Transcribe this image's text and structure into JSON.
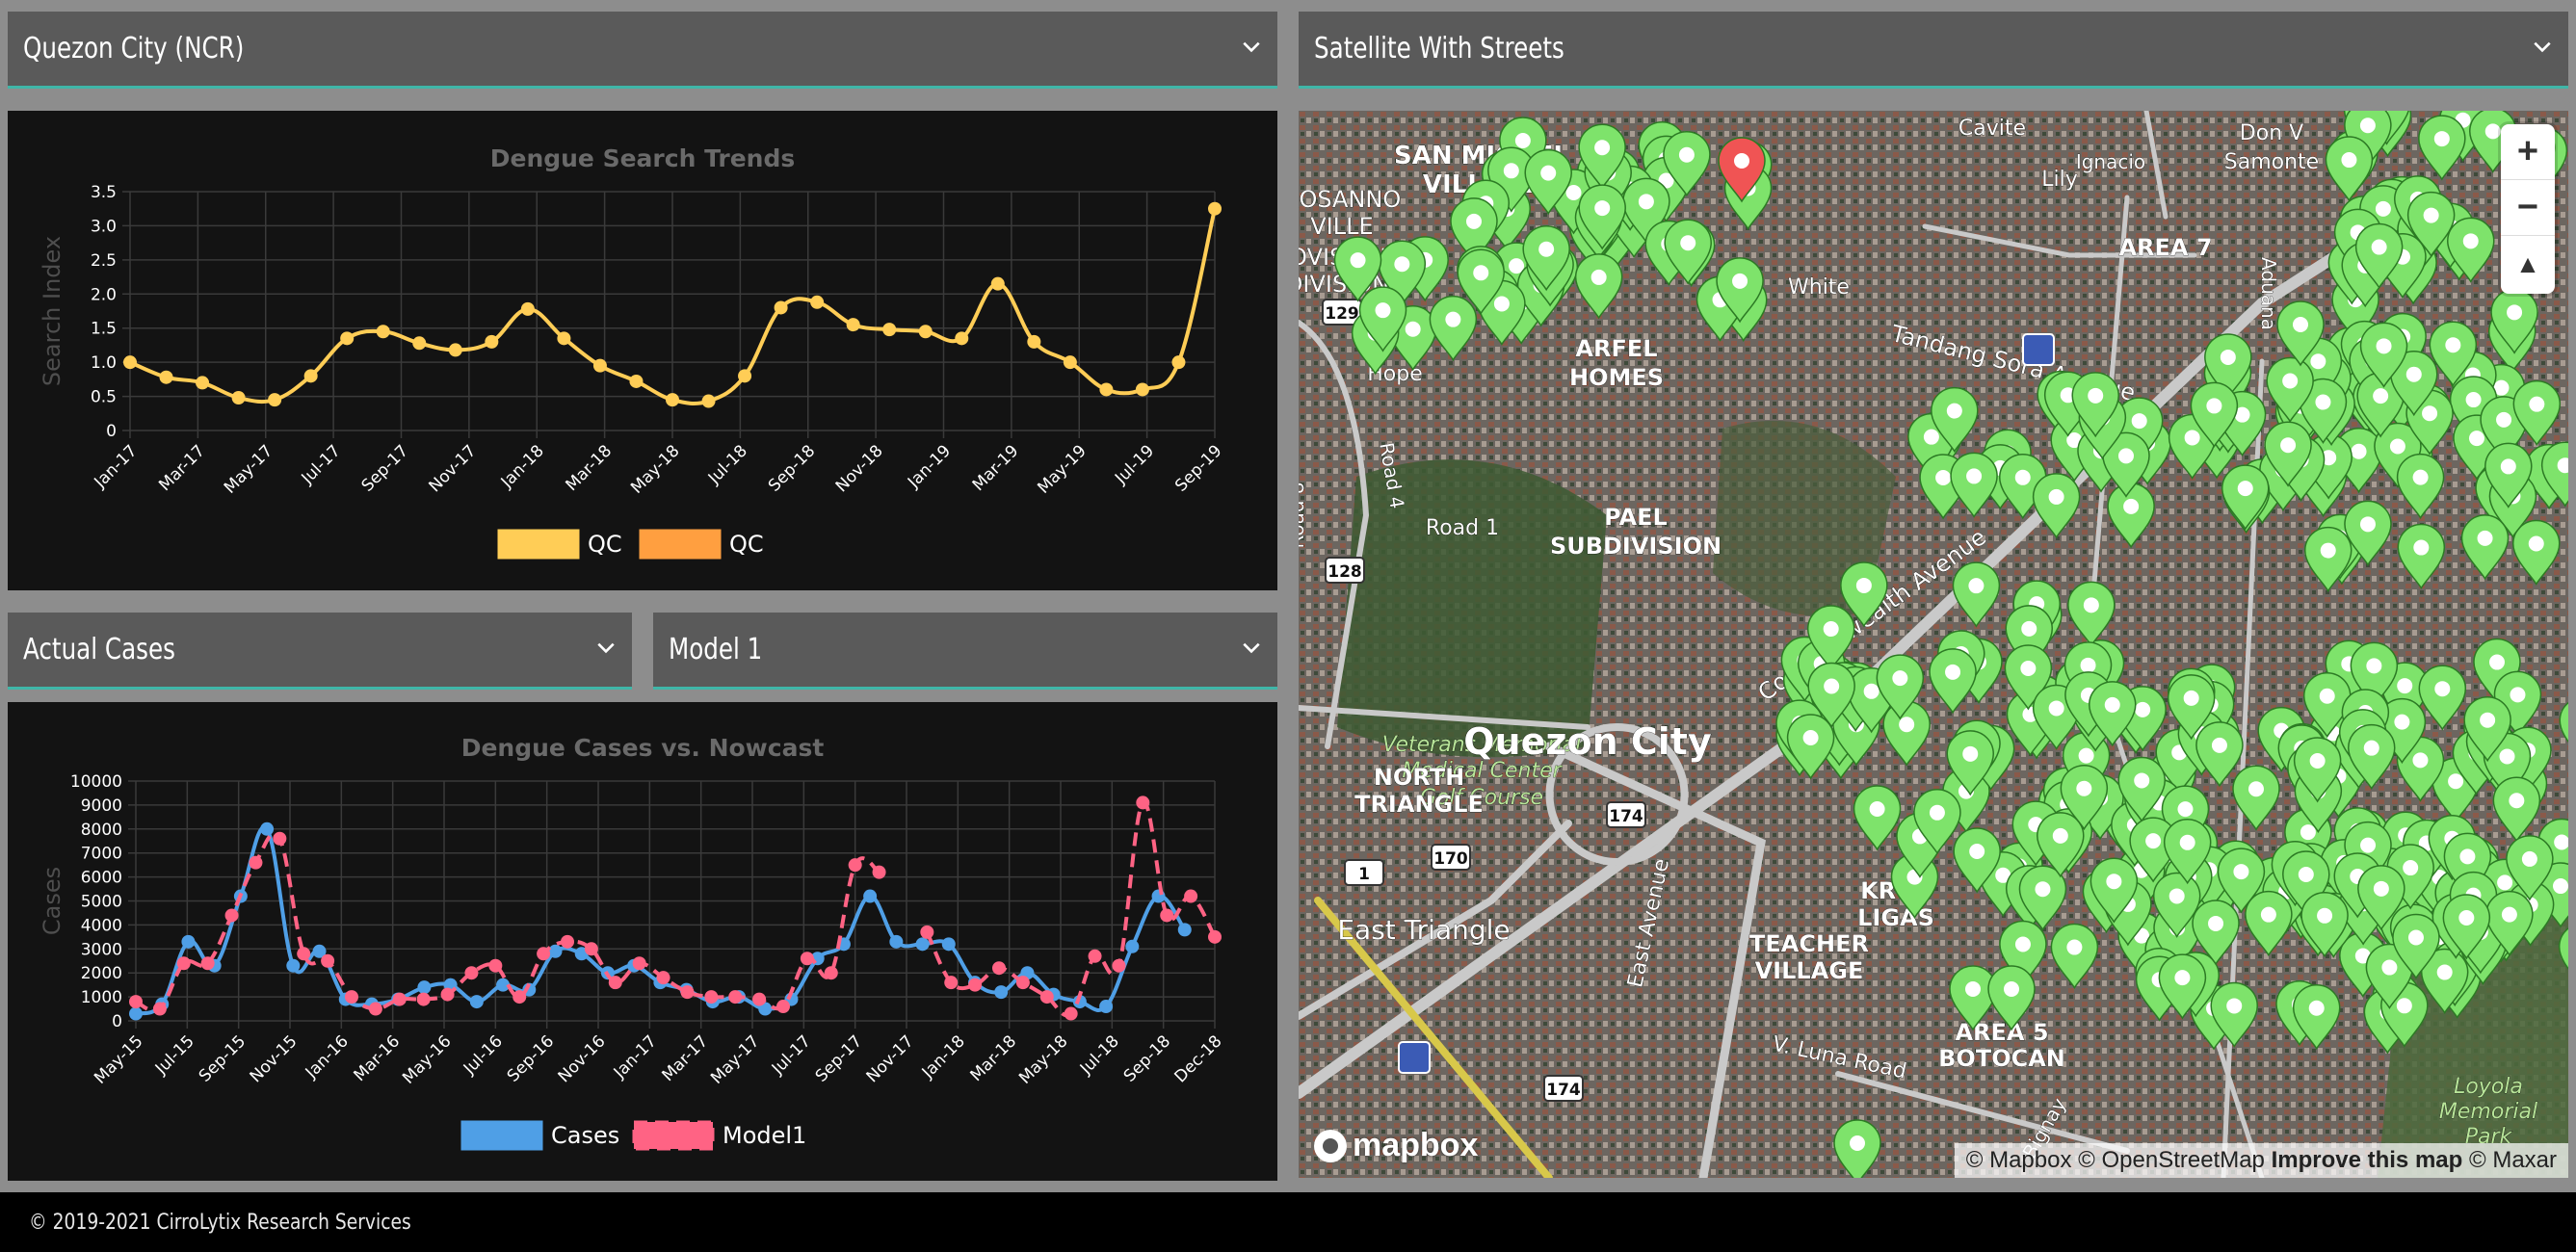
{
  "location_select": {
    "value": "Quezon City (NCR)"
  },
  "map_style_select": {
    "value": "Satellite With Streets"
  },
  "cases_select": {
    "value": "Actual Cases"
  },
  "model_select": {
    "value": "Model 1"
  },
  "colors": {
    "teal_accent": "#3fb6a8",
    "search_line": "#ffcd56",
    "search_legend2": "#ff9f40",
    "cases_line": "#4f9fe6",
    "model_line": "#ff6384",
    "marker_green": "#7ee36b",
    "marker_red": "#f05454"
  },
  "charts": [
    {
      "type": "line",
      "title": "Dengue Search Trends",
      "ylabel": "Search Index",
      "ylim": [
        0,
        3.5
      ],
      "yticks": [
        "0",
        "0.5",
        "1.0",
        "1.5",
        "2.0",
        "2.5",
        "3.0",
        "3.5"
      ],
      "xtick_labels": [
        "Jan-17",
        "Mar-17",
        "May-17",
        "Jul-17",
        "Sep-17",
        "Nov-17",
        "Jan-18",
        "Mar-18",
        "May-18",
        "Jul-18",
        "Sep-18",
        "Nov-18",
        "Jan-19",
        "Mar-19",
        "May-19",
        "Jul-19",
        "Sep-19"
      ],
      "legend": [
        "QC",
        "QC"
      ],
      "series": [
        {
          "name": "QC",
          "values": [
            1.0,
            0.78,
            0.7,
            0.48,
            0.45,
            0.8,
            1.35,
            1.45,
            1.28,
            1.18,
            1.3,
            1.78,
            1.35,
            0.95,
            0.72,
            0.45,
            0.43,
            0.8,
            1.8,
            1.88,
            1.55,
            1.48,
            1.45,
            1.35,
            2.15,
            1.3,
            1.0,
            0.6,
            0.6,
            1.0,
            3.25
          ]
        }
      ]
    },
    {
      "type": "line",
      "title": "Dengue Cases vs. Nowcast",
      "ylabel": "Cases",
      "ylim": [
        0,
        10000
      ],
      "yticks": [
        "0",
        "1000",
        "2000",
        "3000",
        "4000",
        "5000",
        "6000",
        "7000",
        "8000",
        "9000",
        "10000"
      ],
      "xtick_labels": [
        "May-15",
        "Jul-15",
        "Sep-15",
        "Nov-15",
        "Jan-16",
        "Mar-16",
        "May-16",
        "Jul-16",
        "Sep-16",
        "Nov-16",
        "Jan-17",
        "Mar-17",
        "May-17",
        "Jul-17",
        "Sep-17",
        "Nov-17",
        "Jan-18",
        "Mar-18",
        "May-18",
        "Jul-18",
        "Sep-18",
        "Dec-18"
      ],
      "legend": [
        "Cases",
        "Model1"
      ],
      "series": [
        {
          "name": "Cases",
          "values": [
            300,
            700,
            3300,
            2300,
            5200,
            8000,
            2300,
            2900,
            900,
            700,
            900,
            1400,
            1500,
            800,
            1500,
            1300,
            2900,
            2800,
            2000,
            2300,
            1600,
            1300,
            800,
            1000,
            500,
            900,
            2600,
            3200,
            5200,
            3300,
            3200,
            3200,
            1600,
            1200,
            2000,
            1100,
            800,
            600,
            3100,
            5200,
            3800
          ]
        },
        {
          "name": "Model1",
          "values": [
            800,
            500,
            2400,
            2400,
            4400,
            6600,
            7600,
            2800,
            2500,
            1000,
            500,
            900,
            900,
            1100,
            2000,
            2300,
            1000,
            2800,
            3300,
            3000,
            1600,
            2400,
            1800,
            1200,
            1000,
            1000,
            900,
            600,
            2600,
            2000,
            6500,
            6200,
            null,
            3700,
            1600,
            1500,
            2200,
            1600,
            1000,
            300,
            2700,
            2300,
            9100,
            4400,
            5200,
            3500
          ]
        }
      ]
    }
  ],
  "map": {
    "labels": [
      "SAN MIGUEL",
      "VILLAGE",
      "ROSANNO",
      "VILLE",
      "PROVISIONAL",
      "DIVISION",
      "Cavite",
      "Lily",
      "Ignacio",
      "AREA 7",
      "Don V",
      "Samonte",
      "White",
      "Tandang Sora Avenue",
      "Hope",
      "ARFEL",
      "HOMES",
      "PAEL",
      "SUBDIVISION",
      "Road 1",
      "Commonwealth Avenue",
      "Veterans Memorial",
      "Medical Center",
      "Golf Course",
      "Quezon City",
      "NORTH",
      "TRIANGLE",
      "East Triangle",
      "East Avenue",
      "TEACHER",
      "VILLAGE",
      "KRUS",
      "LIGAS",
      "AREA 5",
      "BOTOCAN",
      "V. Luna Road",
      "Bignay",
      "Loyola",
      "Memorial",
      "Park",
      "Brazil",
      "Aduana",
      "Road 8",
      "Road 4"
    ],
    "road_badges": [
      "129",
      "128",
      "1",
      "170",
      "174",
      "174"
    ],
    "zoom_in": "+",
    "zoom_out": "−",
    "compass": "▲",
    "mapbox_logo": "mapbox",
    "attribution": {
      "mapbox": "© Mapbox",
      "osm": "© OpenStreetMap",
      "improve": "Improve this map",
      "maxar": "© Maxar"
    }
  },
  "footer": {
    "text": "© 2019-2021 CirroLytix Research Services"
  }
}
